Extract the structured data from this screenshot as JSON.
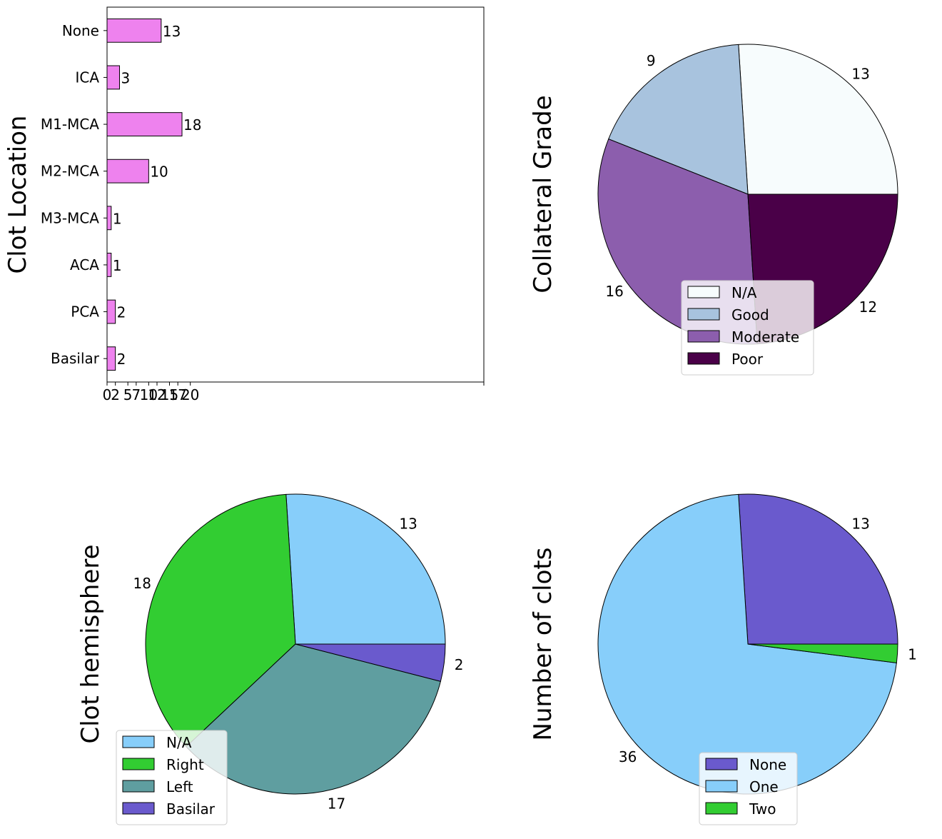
{
  "chart_data": [
    {
      "type": "bar",
      "orientation": "horizontal",
      "ylabel": "Clot Location",
      "categories": [
        "None",
        "ICA",
        "M1-MCA",
        "M2-MCA",
        "M3-MCA",
        "ACA",
        "PCA",
        "Basilar"
      ],
      "values": [
        13,
        3,
        18,
        10,
        1,
        1,
        2,
        2
      ],
      "data_labels": [
        "13",
        "3",
        "18",
        "10",
        "1",
        "1",
        "2",
        "2"
      ],
      "xticks": [
        "0",
        "2",
        "5",
        "7",
        "10",
        "12",
        "15",
        "17",
        "20"
      ],
      "xlim": [
        0,
        90.5
      ],
      "bar_color": "#ee82ee"
    },
    {
      "type": "pie",
      "ylabel": "Collateral Grade",
      "labels": [
        "N/A",
        "Good",
        "Moderate",
        "Poor"
      ],
      "values": [
        13,
        9,
        16,
        12
      ],
      "colors": [
        "#f7fcfd",
        "#a8c3de",
        "#8c5ead",
        "#4a0048"
      ],
      "legend_position": "lower-center"
    },
    {
      "type": "pie",
      "ylabel": "Clot hemisphere",
      "labels": [
        "N/A",
        "Right",
        "Left",
        "Basilar"
      ],
      "values": [
        13,
        18,
        17,
        2
      ],
      "colors": [
        "#87cefa",
        "#32cd32",
        "#5f9ea0",
        "#6a5acd"
      ],
      "legend_position": "lower-left"
    },
    {
      "type": "pie",
      "ylabel": "Number of clots",
      "labels": [
        "None",
        "One",
        "Two"
      ],
      "values": [
        13,
        36,
        1
      ],
      "colors": [
        "#6a5acd",
        "#87cefa",
        "#32cd32"
      ],
      "legend_position": "lower-center"
    }
  ]
}
